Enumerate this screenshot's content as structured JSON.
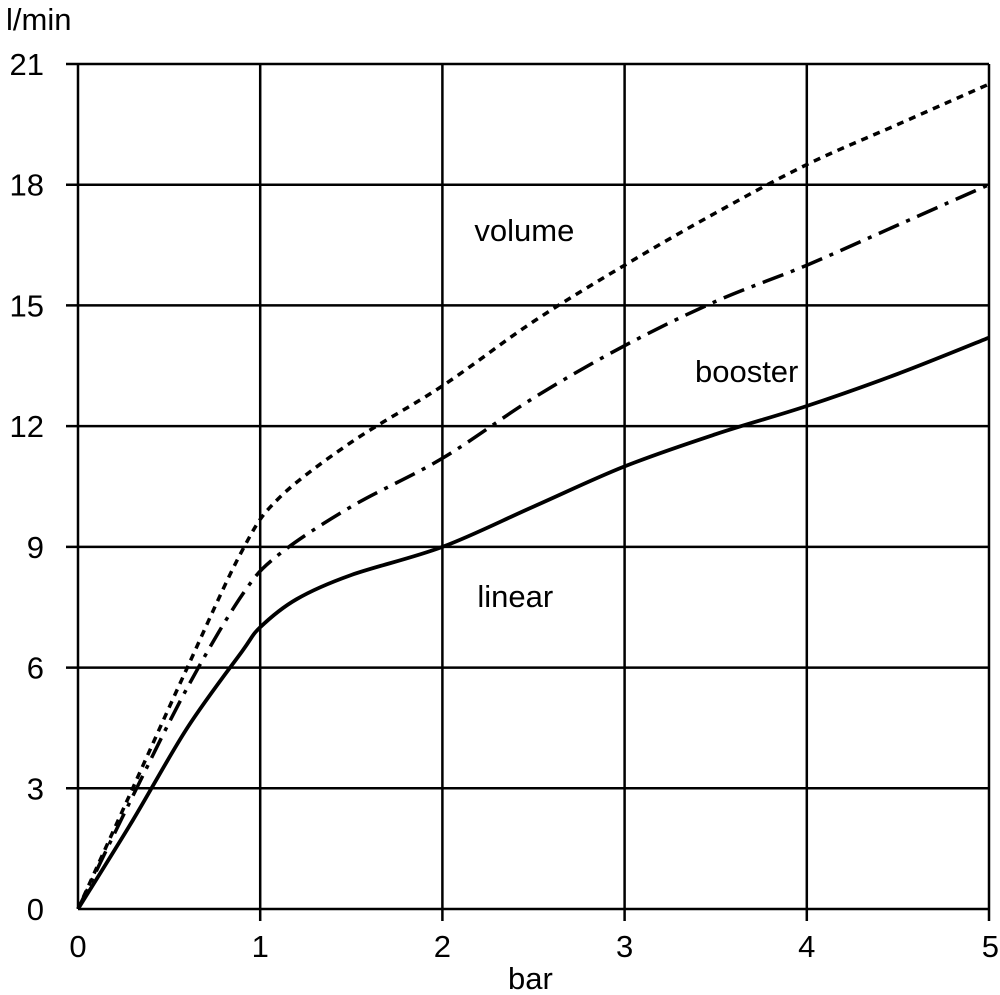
{
  "chart_data": {
    "type": "line",
    "xlabel": "bar",
    "ylabel": "l/min",
    "xlim": [
      0,
      5
    ],
    "ylim": [
      0,
      21
    ],
    "xticks": [
      "0",
      "1",
      "2",
      "3",
      "4",
      "5"
    ],
    "yticks": [
      "0",
      "3",
      "6",
      "9",
      "12",
      "15",
      "18",
      "21"
    ],
    "grid": true,
    "series": [
      {
        "name": "volume",
        "line_style": "dotted",
        "x": [
          0,
          0.3,
          0.6,
          0.9,
          1.1,
          1.5,
          2.0,
          2.5,
          3.0,
          3.5,
          4.0,
          4.5,
          5.0
        ],
        "y": [
          0,
          3.0,
          6.0,
          8.9,
          10.2,
          11.6,
          13.0,
          14.6,
          16.0,
          17.3,
          18.5,
          19.5,
          20.5
        ]
      },
      {
        "name": "booster",
        "line_style": "dash-dot",
        "x": [
          0,
          0.3,
          0.6,
          0.9,
          1.1,
          1.5,
          2.0,
          2.5,
          3.0,
          3.5,
          4.0,
          4.5,
          5.0
        ],
        "y": [
          0,
          2.8,
          5.5,
          7.8,
          8.8,
          10.0,
          11.2,
          12.7,
          14.0,
          15.1,
          16.0,
          17.0,
          18.0
        ]
      },
      {
        "name": "linear",
        "line_style": "solid",
        "x": [
          0,
          0.3,
          0.6,
          0.9,
          1.0,
          1.2,
          1.5,
          2.0,
          2.5,
          3.0,
          3.5,
          4.0,
          4.5,
          5.0
        ],
        "y": [
          0,
          2.2,
          4.5,
          6.4,
          7.0,
          7.7,
          8.3,
          9.0,
          10.0,
          11.0,
          11.8,
          12.5,
          13.3,
          14.2
        ]
      }
    ],
    "curve_labels": [
      {
        "text": "volume",
        "x": 2.45,
        "y": 16.6
      },
      {
        "text": "booster",
        "x": 3.67,
        "y": 13.1
      },
      {
        "text": "linear",
        "x": 2.4,
        "y": 7.5
      }
    ]
  }
}
